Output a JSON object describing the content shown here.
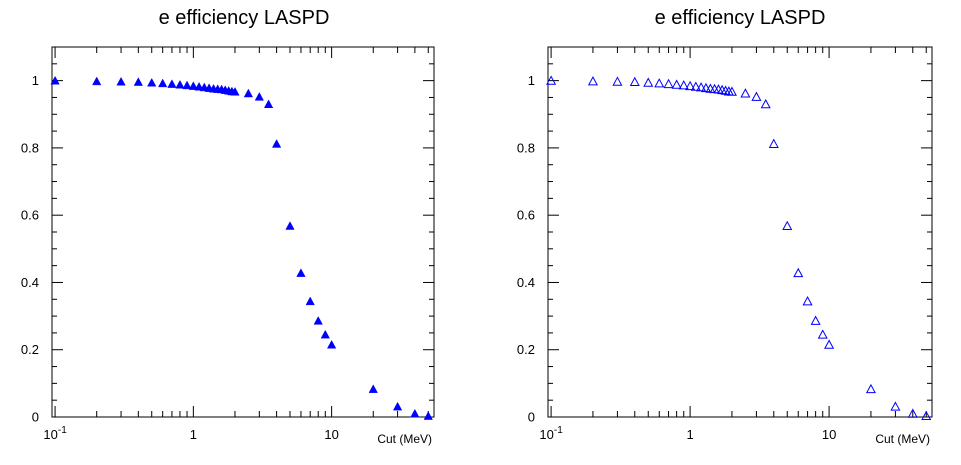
{
  "chart_data": [
    {
      "type": "scatter",
      "title": "e efficiency LASPD",
      "xlabel": "Cut (MeV)",
      "ylabel": "",
      "xscale": "log",
      "xlim": [
        0.095,
        55
      ],
      "ylim": [
        0,
        1.1
      ],
      "x_tick_labels": [
        {
          "value": 0.1,
          "base": "10",
          "exp": "-1"
        },
        {
          "value": 1,
          "base": "1",
          "exp": ""
        },
        {
          "value": 10,
          "base": "10",
          "exp": ""
        }
      ],
      "y_tick_labels": [
        "0",
        "0.2",
        "0.4",
        "0.6",
        "0.8",
        "1"
      ],
      "marker": "filled-triangle",
      "color": "#0000ff",
      "x": [
        0.1,
        0.2,
        0.3,
        0.4,
        0.5,
        0.6,
        0.7,
        0.8,
        0.9,
        1.0,
        1.1,
        1.2,
        1.3,
        1.4,
        1.5,
        1.6,
        1.7,
        1.8,
        1.9,
        2.0,
        2.5,
        3.0,
        3.5,
        4.0,
        5.0,
        6.0,
        7.0,
        8.0,
        9.0,
        10.0,
        20.0,
        30.0,
        40.0,
        50.0
      ],
      "y": [
        1.0,
        0.998,
        0.997,
        0.996,
        0.994,
        0.992,
        0.99,
        0.988,
        0.986,
        0.984,
        0.982,
        0.98,
        0.978,
        0.976,
        0.975,
        0.974,
        0.972,
        0.97,
        0.968,
        0.967,
        0.962,
        0.952,
        0.93,
        0.812,
        0.568,
        0.428,
        0.344,
        0.286,
        0.245,
        0.215,
        0.083,
        0.031,
        0.01,
        0.003
      ]
    },
    {
      "type": "scatter",
      "title": "e efficiency LASPD",
      "xlabel": "Cut (MeV)",
      "ylabel": "",
      "xscale": "log",
      "xlim": [
        0.095,
        55
      ],
      "ylim": [
        0,
        1.1
      ],
      "x_tick_labels": [
        {
          "value": 0.1,
          "base": "10",
          "exp": "-1"
        },
        {
          "value": 1,
          "base": "1",
          "exp": ""
        },
        {
          "value": 10,
          "base": "10",
          "exp": ""
        }
      ],
      "y_tick_labels": [
        "0",
        "0.2",
        "0.4",
        "0.6",
        "0.8",
        "1"
      ],
      "marker": "open-triangle",
      "color": "#0000ff",
      "x": [
        0.1,
        0.2,
        0.3,
        0.4,
        0.5,
        0.6,
        0.7,
        0.8,
        0.9,
        1.0,
        1.1,
        1.2,
        1.3,
        1.4,
        1.5,
        1.6,
        1.7,
        1.8,
        1.9,
        2.0,
        2.5,
        3.0,
        3.5,
        4.0,
        5.0,
        6.0,
        7.0,
        8.0,
        9.0,
        10.0,
        20.0,
        30.0,
        40.0,
        50.0
      ],
      "y": [
        1.0,
        0.998,
        0.997,
        0.996,
        0.994,
        0.992,
        0.99,
        0.988,
        0.986,
        0.984,
        0.982,
        0.98,
        0.978,
        0.976,
        0.975,
        0.974,
        0.972,
        0.97,
        0.968,
        0.967,
        0.962,
        0.952,
        0.93,
        0.812,
        0.568,
        0.428,
        0.344,
        0.286,
        0.245,
        0.215,
        0.083,
        0.031,
        0.01,
        0.003
      ]
    }
  ]
}
